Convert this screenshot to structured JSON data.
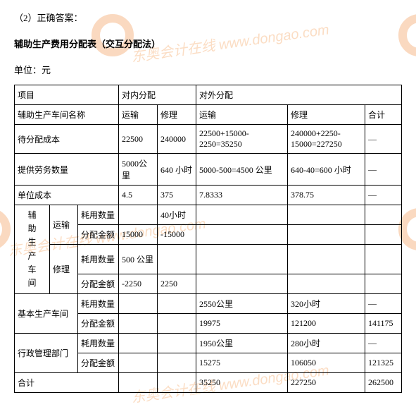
{
  "heading": "（2）正确答案：",
  "title": "辅助生产费用分配表（交互分配法）",
  "unit": "单位：元",
  "headers": {
    "item": "项目",
    "inner_alloc": "对内分配",
    "outer_alloc": "对外分配",
    "workshop_name": "辅助生产车间名称",
    "transport": "运输",
    "repair": "修理",
    "total": "合计",
    "pending_cost": "待分配成本",
    "service_qty": "提供劳务数量",
    "unit_cost": "单位成本",
    "aux_workshop": "辅助生产车间",
    "consume_qty": "耗用数量",
    "alloc_amount": "分配金额",
    "basic_workshop": "基本生产车间",
    "admin_dept": "行政管理部门",
    "grand_total": "合计"
  },
  "pending_cost": {
    "inner_transport": "22500",
    "inner_repair": "240000",
    "outer_transport": "22500+15000-2250=35250",
    "outer_repair": "240000+2250-15000=227250",
    "total": "—"
  },
  "service_qty": {
    "inner_transport": "5000公里",
    "inner_repair": "640 小时",
    "outer_transport": "5000-500=4500 公里",
    "outer_repair": "640-40=600 小时",
    "total": "—"
  },
  "unit_cost": {
    "inner_transport": "4.5",
    "inner_repair": "375",
    "outer_transport": "7.8333",
    "outer_repair": "378.75",
    "total": "—"
  },
  "aux_transport": {
    "consume_qty_repair": "40小时",
    "alloc_inner_transport": "15000",
    "alloc_inner_repair": "-15000"
  },
  "aux_repair": {
    "consume_qty_transport": "500 公里",
    "alloc_inner_transport": "-2250",
    "alloc_inner_repair": "2250"
  },
  "basic": {
    "qty_transport": "2550公里",
    "qty_repair": "320小时",
    "qty_total": "—",
    "amt_transport": "19975",
    "amt_repair": "121200",
    "amt_total": "141175"
  },
  "admin": {
    "qty_transport": "1950公里",
    "qty_repair": "280小时",
    "qty_total": "—",
    "amt_transport": "15275",
    "amt_repair": "106050",
    "amt_total": "121325"
  },
  "grand": {
    "transport": "35250",
    "repair": "227250",
    "total": "262500"
  },
  "watermark_text": "东奥会计在线 www.dongao.com"
}
